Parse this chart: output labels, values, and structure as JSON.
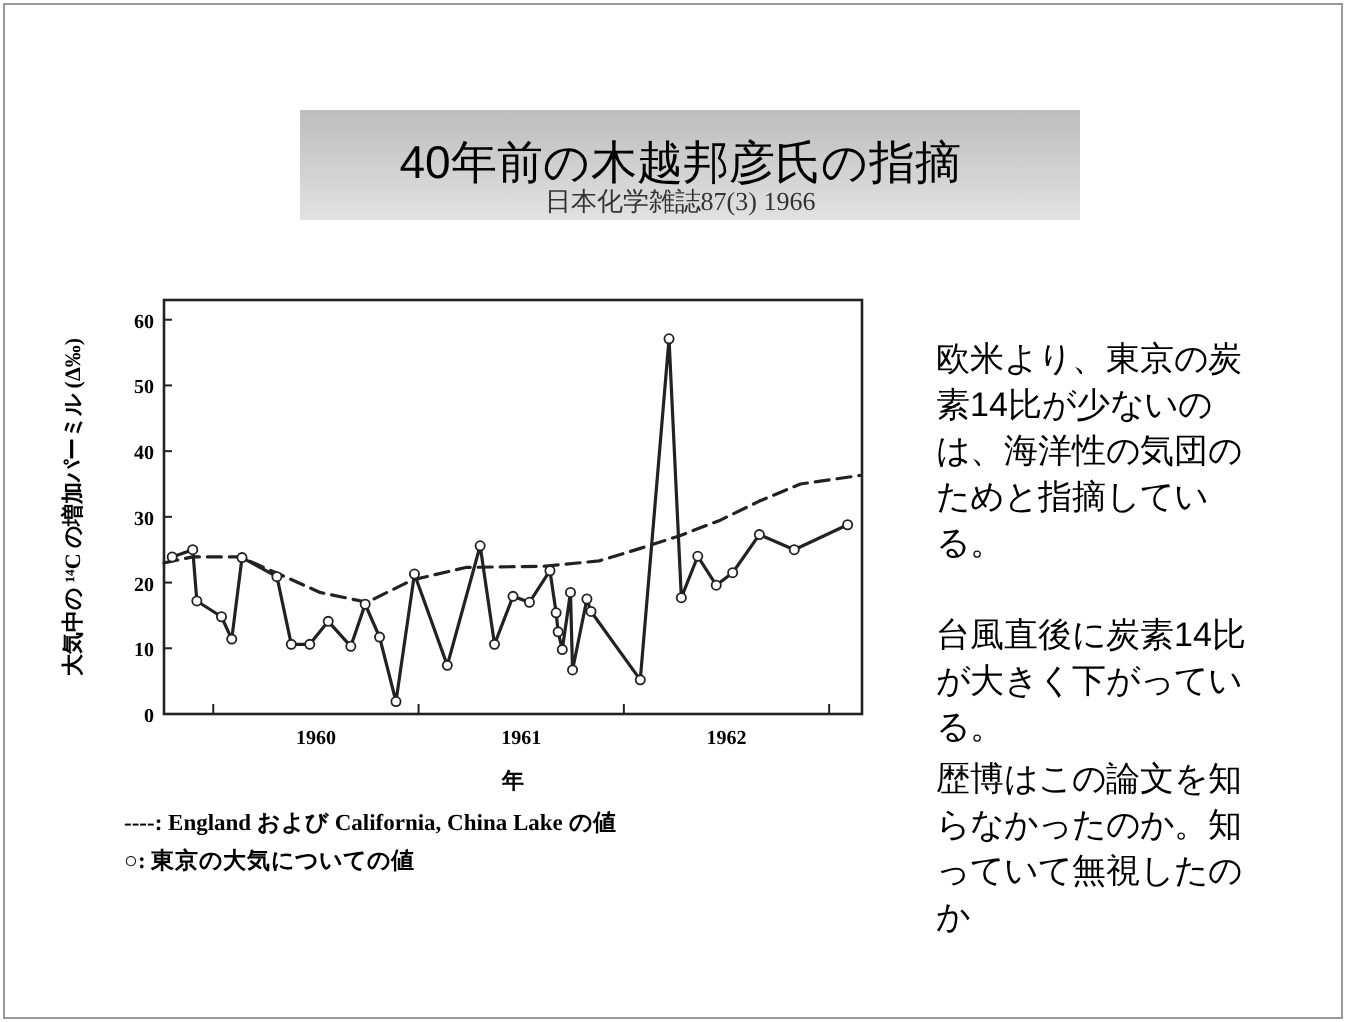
{
  "chart_data": {
    "type": "line",
    "title": "40年前の木越邦彦氏の指摘",
    "subtitle": "日本化学雑誌87(3) 1966",
    "xlabel": "年",
    "ylabel": "大気中の ¹⁴C の増加パーミル (Δ‰)",
    "xlim": [
      1959.76,
      1963.16
    ],
    "ylim": [
      0,
      63
    ],
    "xticks": [
      {
        "value": 1960,
        "label": null
      },
      {
        "value": 1960.5,
        "label": "1960"
      },
      {
        "value": 1961,
        "label": null
      },
      {
        "value": 1961.5,
        "label": "1961"
      },
      {
        "value": 1962,
        "label": null
      },
      {
        "value": 1962.5,
        "label": "1962"
      },
      {
        "value": 1963,
        "label": null
      }
    ],
    "yticks": [
      0,
      10,
      20,
      30,
      40,
      50,
      60
    ],
    "grid": false,
    "series": [
      {
        "color": "#222222",
        "marker": "none",
        "line_style": "dashed",
        "x": [
          1959.76,
          1959.9,
          1960.13,
          1960.32,
          1960.52,
          1960.75,
          1960.97,
          1961.23,
          1961.62,
          1961.88,
          1962.08,
          1962.27,
          1962.47,
          1962.66,
          1962.86,
          1963.15
        ],
        "values": [
          23.0,
          23.9,
          23.9,
          21.3,
          18.5,
          17.0,
          20.4,
          22.3,
          22.5,
          23.3,
          25.2,
          27.1,
          29.5,
          32.4,
          35.0,
          36.3
        ]
      },
      {
        "color": "#222222",
        "marker": "circle",
        "line_style": "solid",
        "x": [
          1959.8,
          1959.9,
          1959.92,
          1960.04,
          1960.09,
          1960.14,
          1960.31,
          1960.38,
          1960.47,
          1960.56,
          1960.67,
          1960.74,
          1960.81,
          1960.89,
          1960.98,
          1961.14,
          1961.3,
          1961.37,
          1961.46,
          1961.54,
          1961.64,
          1961.67,
          1961.68,
          1961.7,
          1961.74,
          1961.75,
          1961.82,
          1961.84,
          1962.08,
          1962.22,
          1962.28,
          1962.36,
          1962.45,
          1962.53,
          1962.66,
          1962.83,
          1963.09
        ],
        "values": [
          23.9,
          25.0,
          17.2,
          14.8,
          11.4,
          23.8,
          20.9,
          10.6,
          10.6,
          14.1,
          10.3,
          16.7,
          11.7,
          1.9,
          21.3,
          7.4,
          25.6,
          10.6,
          17.9,
          17.0,
          21.8,
          15.4,
          12.5,
          9.8,
          18.5,
          6.7,
          17.5,
          15.6,
          5.2,
          57.1,
          17.7,
          24.0,
          19.6,
          21.5,
          27.3,
          25.0,
          28.8
        ]
      }
    ],
    "annotations": [
      "----: England および California, China Lake の値",
      "○: 東京の大気についての値",
      "欧米より、東京の炭素14比が少ないのは、海洋性の気団のためと指摘している。",
      "台風直後に炭素14比が大きく下がっている。",
      "歴博はこの論文を知らなかったのか。知っていて無視したのか"
    ]
  }
}
